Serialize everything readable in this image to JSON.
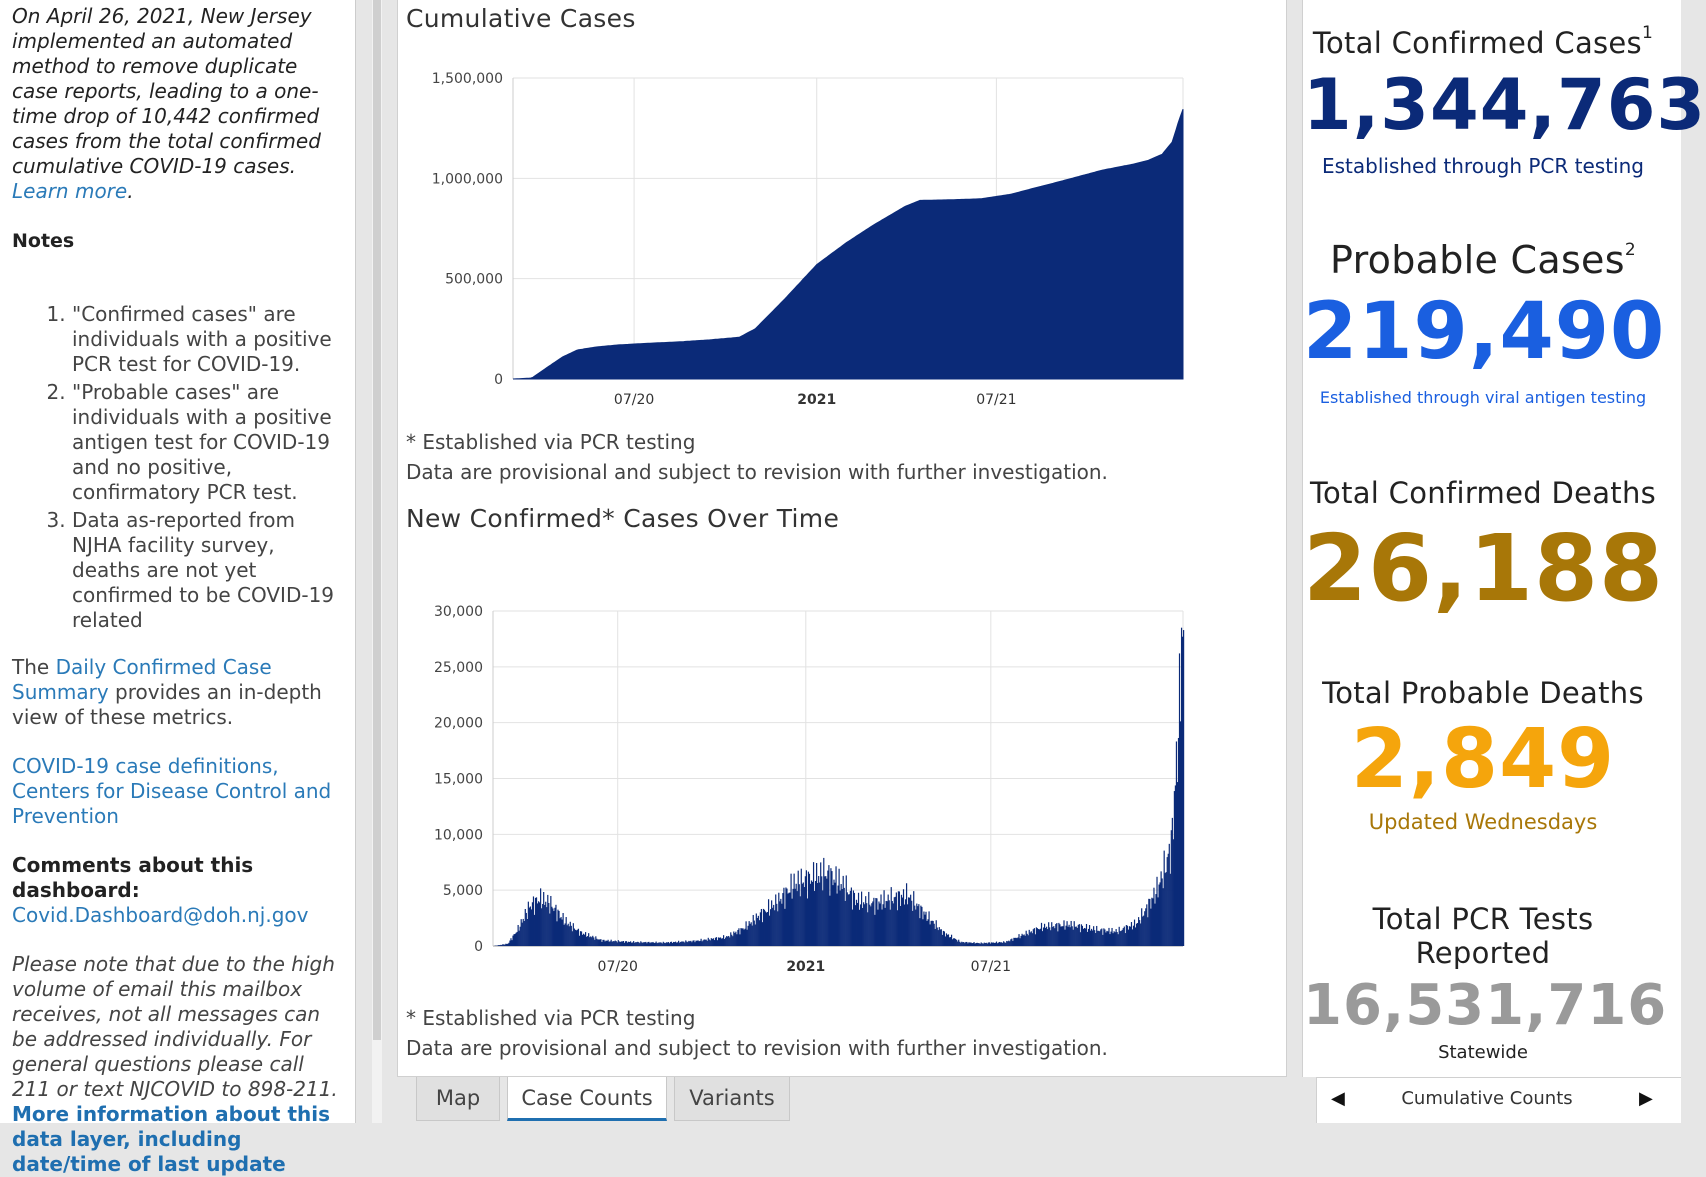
{
  "left_panel": {
    "intro_text": "On April 26, 2021, New Jersey implemented an automated method to remove duplicate case reports, leading to a one-time drop of 10,442 confirmed cases from the total confirmed cumulative COVID-19 cases.",
    "intro_link": "Learn more",
    "notes_heading": "Notes",
    "notes": [
      "\"Confirmed cases\" are individuals with a positive PCR test for COVID-19.",
      "\"Probable cases\" are individuals with a positive antigen test for COVID-19 and no positive, confirmatory PCR test.",
      "Data as-reported from NJHA facility survey, deaths are not yet confirmed to be COVID-19 related"
    ],
    "summary_prefix": "The ",
    "summary_link": "Daily Confirmed Case Summary",
    "summary_suffix": " provides an in-depth view of these metrics.",
    "cdc_link": "COVID-19 case definitions, Centers for Disease Control and Prevention",
    "comments_line1": "Comments about this",
    "comments_label": "dashboard:",
    "comments_email": "Covid.Dashboard@doh.nj.gov",
    "mailbox_note": "Please note that due to the high volume of email this mailbox receives, not all messages can be addressed individually. For general questions please call 211 or text NJCOVID to 898-211.",
    "more_info_link": "More information about this data layer, including date/time of last update"
  },
  "colors": {
    "navy": "#0b2a78",
    "blue": "#1a5fe0",
    "gold": "#a87708",
    "orange": "#f5a50c",
    "gray": "#9a9a9a",
    "link": "#2a7ab8"
  },
  "chart_data": [
    {
      "type": "area",
      "title": "Cumulative Cases",
      "x_tick_labels": [
        "07/20",
        "2021",
        "07/21"
      ],
      "y_tick_labels": [
        "0",
        "500,000",
        "1,000,000",
        "1,500,000"
      ],
      "ylim": [
        0,
        1500000
      ],
      "x_range": [
        "2020-03-01",
        "2022-01-05"
      ],
      "x": [
        "2020-03-01",
        "2020-03-20",
        "2020-04-05",
        "2020-04-20",
        "2020-05-05",
        "2020-05-25",
        "2020-06-15",
        "2020-07-15",
        "2020-08-15",
        "2020-09-15",
        "2020-10-15",
        "2020-10-31",
        "2020-11-30",
        "2021-01-01",
        "2021-01-31",
        "2021-02-28",
        "2021-03-31",
        "2021-04-15",
        "2021-05-15",
        "2021-06-15",
        "2021-07-15",
        "2021-08-15",
        "2021-09-15",
        "2021-10-15",
        "2021-11-15",
        "2021-12-01",
        "2021-12-15",
        "2021-12-25",
        "2022-01-01",
        "2022-01-05"
      ],
      "series": [
        {
          "values": [
            0,
            5000,
            60000,
            110000,
            145000,
            160000,
            170000,
            178000,
            185000,
            195000,
            208000,
            250000,
            400000,
            570000,
            680000,
            770000,
            860000,
            890000,
            893000,
            898000,
            920000,
            960000,
            1000000,
            1040000,
            1070000,
            1090000,
            1120000,
            1180000,
            1290000,
            1344763
          ]
        }
      ],
      "grid": true,
      "note_1": "* Established via PCR testing",
      "note_2": "Data are provisional and subject to revision with further investigation."
    },
    {
      "type": "bar",
      "title": "New Confirmed* Cases Over Time",
      "x_tick_labels": [
        "07/20",
        "2021",
        "07/21"
      ],
      "y_tick_labels": [
        "0",
        "5,000",
        "10,000",
        "15,000",
        "20,000",
        "25,000",
        "30,000"
      ],
      "ylim": [
        0,
        30000
      ],
      "x_range": [
        "2020-03-01",
        "2022-01-05"
      ],
      "x": [
        "2020-03-01",
        "2020-03-15",
        "2020-03-25",
        "2020-04-05",
        "2020-04-15",
        "2020-04-25",
        "2020-05-10",
        "2020-05-25",
        "2020-06-15",
        "2020-07-15",
        "2020-08-15",
        "2020-09-15",
        "2020-10-15",
        "2020-11-01",
        "2020-11-20",
        "2020-12-05",
        "2020-12-20",
        "2021-01-05",
        "2021-01-20",
        "2021-02-05",
        "2021-02-20",
        "2021-03-10",
        "2021-03-25",
        "2021-04-10",
        "2021-04-25",
        "2021-05-15",
        "2021-06-01",
        "2021-06-20",
        "2021-07-15",
        "2021-08-01",
        "2021-08-20",
        "2021-09-15",
        "2021-10-15",
        "2021-11-01",
        "2021-11-20",
        "2021-12-01",
        "2021-12-10",
        "2021-12-18",
        "2021-12-24",
        "2021-12-28",
        "2022-01-01",
        "2022-01-03",
        "2022-01-05"
      ],
      "series": [
        {
          "values": [
            0,
            200,
            1500,
            3500,
            4200,
            3800,
            2200,
            1200,
            500,
            350,
            300,
            450,
            800,
            1600,
            3000,
            4000,
            5500,
            6000,
            6500,
            5500,
            4000,
            3800,
            4200,
            4500,
            3000,
            1200,
            350,
            250,
            350,
            1000,
            1700,
            1900,
            1400,
            1300,
            2000,
            3500,
            5000,
            7000,
            9000,
            14500,
            21000,
            28500,
            26000
          ]
        }
      ],
      "grid": true,
      "note_1": "* Established via PCR testing",
      "note_2": "Data are provisional and subject to revision with further investigation."
    }
  ],
  "stats": {
    "confirmed_cases": {
      "label": "Total Confirmed Cases",
      "sup": "1",
      "value": "1,344,763",
      "sub": "Established through PCR testing"
    },
    "probable_cases": {
      "label": "Probable Cases",
      "sup": "2",
      "value": "219,490",
      "sub": "Established through viral antigen testing"
    },
    "confirmed_deaths": {
      "label": "Total Confirmed Deaths",
      "value": "26,188"
    },
    "probable_deaths": {
      "label": "Total Probable Deaths",
      "value": "2,849",
      "sub": "Updated Wednesdays"
    },
    "pcr_tests": {
      "label": "Total PCR Tests Reported",
      "value": "16,531,716",
      "sub": "Statewide"
    }
  },
  "tabs": [
    {
      "label": "Map",
      "active": false
    },
    {
      "label": "Case Counts",
      "active": true
    },
    {
      "label": "Variants",
      "active": false
    }
  ],
  "right_nav": {
    "label": "Cumulative Counts",
    "prev_icon": "◀",
    "next_icon": "▶"
  }
}
